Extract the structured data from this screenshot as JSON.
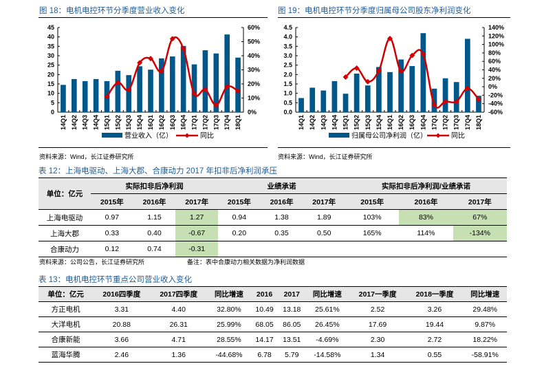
{
  "figures": {
    "fig18": {
      "title": "图 18：电机电控环节分季度营业收入变化",
      "source": "资料来源：Wind，长江证券研究所"
    },
    "fig19": {
      "title": "图 19：电机电控环节分季度归属母公司股东净利润变化",
      "source": "资料来源：Wind，长江证券研究所"
    }
  },
  "chart_data": [
    {
      "type": "bar",
      "title": "图 18：电机电控环节分季度营业收入变化",
      "categories": [
        "14Q1",
        "14Q2",
        "14Q3",
        "14Q4",
        "15Q1",
        "15Q2",
        "15Q3",
        "15Q4",
        "16Q1",
        "16Q2",
        "16Q3",
        "16Q4",
        "17Q1",
        "17Q2",
        "17Q3",
        "17Q4",
        "18Q1"
      ],
      "series": [
        {
          "name": "营业收入（亿）",
          "type": "bar",
          "axis": "left",
          "color": "#00578a",
          "values": [
            14.5,
            17.6,
            16.5,
            17.6,
            16.5,
            22.0,
            19.7,
            24.4,
            22.6,
            28.6,
            29.6,
            35.2,
            25.4,
            32.9,
            31.2,
            41.3,
            29.0
          ]
        },
        {
          "name": "同比",
          "type": "line",
          "axis": "right",
          "color": "#d10000",
          "values": [
            null,
            null,
            null,
            null,
            11,
            21,
            16,
            35,
            38,
            29,
            52,
            45,
            13,
            16,
            5,
            18,
            15
          ]
        }
      ],
      "yleft": {
        "ylim": [
          0,
          45
        ],
        "ticks": [
          "0",
          "5",
          "10",
          "15",
          "20",
          "25",
          "30",
          "35",
          "40",
          "45"
        ]
      },
      "yright": {
        "ylim": [
          0,
          60
        ],
        "ticks": [
          "0%",
          "10%",
          "20%",
          "30%",
          "40%",
          "50%",
          "60%"
        ]
      },
      "legend": "bottom"
    },
    {
      "type": "bar",
      "title": "图 19：电机电控环节分季度归属母公司股东净利润变化",
      "categories": [
        "14Q1",
        "14Q2",
        "14Q3",
        "14Q4",
        "15Q1",
        "15Q2",
        "15Q3",
        "15Q4",
        "16Q1",
        "16Q2",
        "16Q3",
        "16Q4",
        "17Q1",
        "17Q2",
        "17Q3",
        "17Q4",
        "18Q1"
      ],
      "series": [
        {
          "name": "归属母公司净利润（亿）",
          "type": "bar",
          "axis": "left",
          "color": "#00578a",
          "values": [
            0.75,
            1.3,
            1.15,
            1.65,
            0.98,
            2.05,
            1.42,
            2.4,
            2.13,
            2.8,
            2.45,
            4.2,
            1.25,
            1.8,
            1.6,
            3.9,
            0.87
          ]
        },
        {
          "name": "同比",
          "type": "line",
          "axis": "right",
          "color": "#d10000",
          "values": [
            null,
            null,
            null,
            null,
            23,
            44,
            12,
            38,
            114,
            37,
            74,
            77,
            -42,
            -35,
            -35,
            -4,
            -30
          ]
        }
      ],
      "yleft": {
        "ylim": [
          0,
          4.5
        ],
        "ticks": [
          "0.0",
          "0.5",
          "1.0",
          "1.5",
          "2.0",
          "2.5",
          "3.0",
          "3.5",
          "4.0",
          "4.5"
        ]
      },
      "yright": {
        "ylim": [
          -60,
          140
        ],
        "ticks": [
          "-60%",
          "-40%",
          "-20%",
          "0%",
          "20%",
          "40%",
          "60%",
          "80%",
          "100%",
          "120%",
          "140%"
        ]
      },
      "legend": "bottom"
    }
  ],
  "table12": {
    "title": "表 12：上海电驱动、上海大郡、合康动力 2017 年扣非后净利润承压",
    "unit_label": "单位：亿元",
    "groups": [
      "实际扣非后净利润",
      "业绩承诺",
      "实际扣非后净利润/业绩承诺"
    ],
    "years": [
      "2015年",
      "2016年",
      "2017年",
      "2015年",
      "2016年",
      "2017年",
      "2015年",
      "2016年",
      "2017年"
    ],
    "rows": [
      {
        "name": "上海电驱动",
        "cells": [
          "0.97",
          "1.15",
          "1.27",
          "0.94",
          "1.38",
          "1.89",
          "103%",
          "83%",
          "67%"
        ]
      },
      {
        "name": "上海大郡",
        "cells": [
          "0.33",
          "0.40",
          "-0.67",
          "0.20",
          "0.35",
          "0.50",
          "165%",
          "114%",
          "-134%"
        ]
      },
      {
        "name": "合康动力",
        "cells": [
          "0.12",
          "0.74",
          "-0.31",
          "",
          "",
          "",
          "",
          "",
          ""
        ]
      }
    ],
    "source": "资料来源：公司公告，长江证券研究所",
    "note": "备注：表中合康动力相关数据为净利润数据",
    "highlight_color": "#c6e0b4"
  },
  "table13": {
    "title": "表 13：电机电控环节重点公司营业收入变化",
    "headers": [
      "单位：亿元",
      "2016四季度",
      "2017四季度",
      "同比增速",
      "2016",
      "2017",
      "同比增速",
      "2017一季度",
      "2018一季度",
      "同比增速"
    ],
    "rows": [
      [
        "方正电机",
        "3.31",
        "4.40",
        "32.80%",
        "10.49",
        "13.18",
        "25.61%",
        "2.52",
        "3.26",
        "29.48%"
      ],
      [
        "大洋电机",
        "20.88",
        "26.31",
        "25.99%",
        "68.05",
        "86.05",
        "26.45%",
        "17.69",
        "19.44",
        "9.87%"
      ],
      [
        "合康新能",
        "3.66",
        "4.71",
        "28.55%",
        "14.17",
        "13.51",
        "-4.69%",
        "2.30",
        "2.72",
        "18.22%"
      ],
      [
        "蓝海华腾",
        "2.46",
        "1.36",
        "-44.68%",
        "6.78",
        "5.79",
        "-14.58%",
        "1.34",
        "0.55",
        "-58.91%"
      ]
    ]
  }
}
